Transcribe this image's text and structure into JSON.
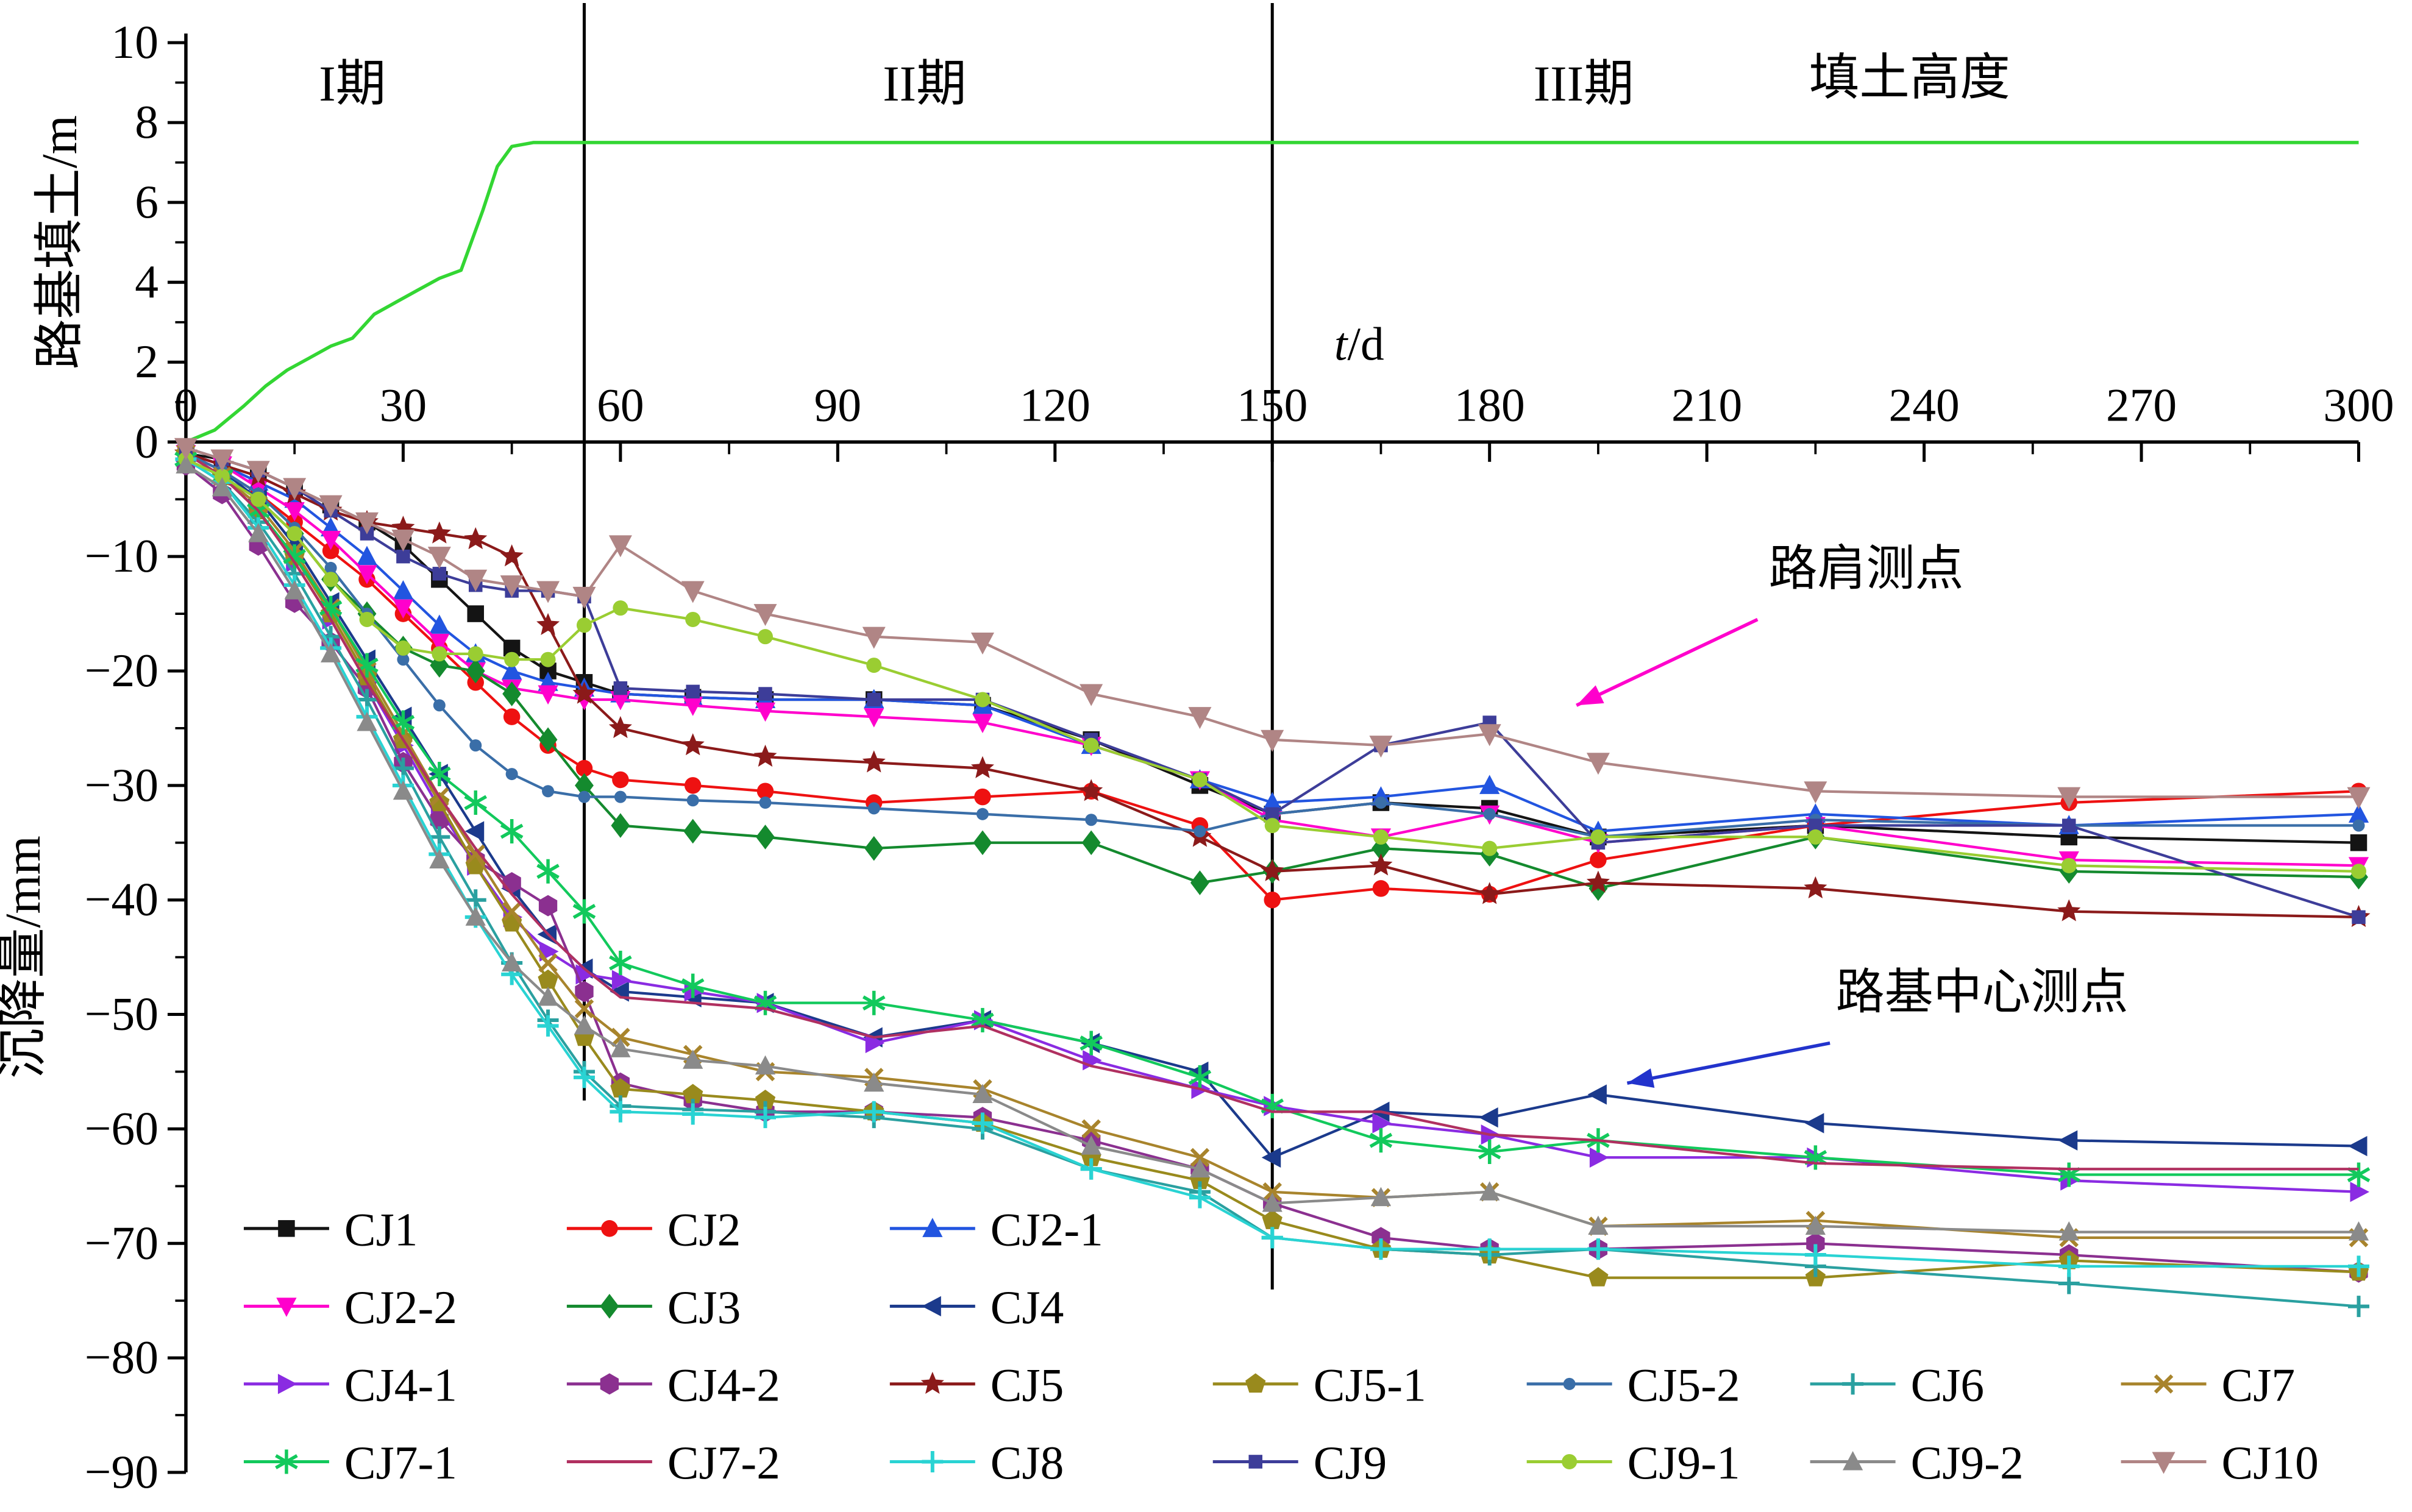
{
  "figure": {
    "background": "#ffffff",
    "axis_color": "#000000",
    "phase_label_color": "#ff0000"
  },
  "chart_data": {
    "type": "line",
    "title": "",
    "xlabel": "t/d",
    "xlim": [
      0,
      300
    ],
    "xticks": [
      0,
      30,
      60,
      90,
      120,
      150,
      180,
      210,
      240,
      270,
      300
    ],
    "phase_dividers_t": [
      55,
      150
    ],
    "phase_labels": [
      {
        "label": "I期",
        "t": 23
      },
      {
        "label": "II期",
        "t": 102
      },
      {
        "label": "III期",
        "t": 193
      }
    ],
    "top_chart": {
      "ylabel": "路基填土/m",
      "ylim": [
        0,
        10
      ],
      "yticks": [
        0,
        2,
        4,
        6,
        8,
        10
      ],
      "series_label": "填土高度",
      "series_color": "#33d633",
      "label_t": 238,
      "label_m": 8.7,
      "x": [
        0,
        4,
        8,
        11,
        14,
        17,
        20,
        23,
        26,
        29,
        32,
        35,
        38,
        41,
        43,
        45,
        48,
        55,
        100,
        150,
        200,
        250,
        300
      ],
      "y": [
        0,
        0.3,
        0.9,
        1.4,
        1.8,
        2.1,
        2.4,
        2.6,
        3.2,
        3.5,
        3.8,
        4.1,
        4.3,
        5.8,
        6.9,
        7.4,
        7.5,
        7.5,
        7.5,
        7.5,
        7.5,
        7.5,
        7.5
      ]
    },
    "bottom_chart": {
      "ylabel": "沉降量/mm",
      "ylim": [
        -90,
        0
      ],
      "yticks": [
        0,
        -10,
        -20,
        -30,
        -40,
        -50,
        -60,
        -70,
        -80,
        -90
      ],
      "x": [
        0,
        5,
        10,
        15,
        20,
        25,
        30,
        35,
        40,
        45,
        50,
        55,
        60,
        70,
        80,
        95,
        110,
        125,
        140,
        150,
        165,
        180,
        195,
        225,
        260,
        300
      ],
      "series": [
        {
          "name": "CJ1",
          "color": "#141414",
          "marker": "square",
          "size": 5.5,
          "group": "shoulder",
          "y": [
            -1,
            -1.5,
            -2.5,
            -4,
            -5.5,
            -7,
            -9,
            -12,
            -15,
            -18,
            -20,
            -21,
            -22,
            -22.3,
            -22.5,
            -22.5,
            -23,
            -26,
            -30,
            -32.5,
            -31.5,
            -32,
            -34.5,
            -33.5,
            -34.5,
            -35
          ]
        },
        {
          "name": "CJ2",
          "color": "#ee1111",
          "marker": "circle",
          "size": 5.5,
          "group": "shoulder",
          "y": [
            -1,
            -2.5,
            -4.5,
            -7,
            -9.5,
            -12,
            -15,
            -18,
            -21,
            -24,
            -26.5,
            -28.5,
            -29.5,
            -30,
            -30.5,
            -31.5,
            -31,
            -30.5,
            -33.5,
            -40,
            -39,
            -39.5,
            -36.5,
            -33.5,
            -31.5,
            -30.5
          ]
        },
        {
          "name": "CJ2-1",
          "color": "#2255e0",
          "marker": "triangle-up",
          "size": 7,
          "group": "shoulder",
          "y": [
            -1,
            -2,
            -3.5,
            -5,
            -7.5,
            -10,
            -13,
            -16,
            -18.5,
            -20,
            -21,
            -21.5,
            -22,
            -22.3,
            -22.5,
            -22.5,
            -23,
            -26.5,
            -29.5,
            -31.5,
            -31,
            -30,
            -34,
            -32.5,
            -33.5,
            -32.5
          ]
        },
        {
          "name": "CJ2-2",
          "color": "#ff00cc",
          "marker": "triangle-down",
          "size": 7,
          "group": "shoulder",
          "y": [
            -1,
            -2,
            -4,
            -6,
            -8.5,
            -11.5,
            -14.5,
            -17.5,
            -20,
            -21.5,
            -22,
            -22.5,
            -22.5,
            -23,
            -23.5,
            -24,
            -24.5,
            -26.5,
            -29.5,
            -33,
            -34.5,
            -32.5,
            -35,
            -33.5,
            -36.5,
            -37
          ]
        },
        {
          "name": "CJ3",
          "color": "#148a2e",
          "marker": "diamond",
          "size": 6.5,
          "group": "shoulder",
          "y": [
            -1.5,
            -3,
            -5,
            -8,
            -12,
            -15,
            -18,
            -19.5,
            -20,
            -22,
            -26,
            -30,
            -33.5,
            -34,
            -34.5,
            -35.5,
            -35,
            -35,
            -38.5,
            -37.5,
            -35.5,
            -36,
            -39,
            -34.5,
            -37.5,
            -38
          ]
        },
        {
          "name": "CJ4",
          "color": "#1b3a8c",
          "marker": "triangle-left",
          "size": 7,
          "group": "center",
          "y": [
            -1,
            -2.5,
            -5,
            -9,
            -14,
            -19,
            -24,
            -29,
            -34,
            -39,
            -43,
            -46,
            -48,
            -48.5,
            -49,
            -52,
            -50.5,
            -52.5,
            -55,
            -62.5,
            -58.5,
            -59,
            -57,
            -59.5,
            -61,
            -61.5
          ]
        },
        {
          "name": "CJ4-1",
          "color": "#8a2be2",
          "marker": "triangle-right",
          "size": 7,
          "group": "center",
          "y": [
            -1,
            -3,
            -6,
            -10.5,
            -15.5,
            -21,
            -26.5,
            -32,
            -37,
            -41.5,
            -44.5,
            -46.5,
            -47,
            -48,
            -49,
            -52.5,
            -50.5,
            -54,
            -56.5,
            -58,
            -59.5,
            -60.5,
            -62.5,
            -62.5,
            -64.5,
            -65.5
          ]
        },
        {
          "name": "CJ4-2",
          "color": "#8b3090",
          "marker": "hexagon",
          "size": 7,
          "group": "center",
          "y": [
            -2,
            -4.5,
            -9,
            -14,
            -17.5,
            -21.5,
            -28,
            -33,
            -36.5,
            -38.5,
            -40.5,
            -48,
            -56,
            -57.5,
            -58.5,
            -58.5,
            -59,
            -61,
            -63.5,
            -66.5,
            -69.5,
            -70.5,
            -70.5,
            -70,
            -71,
            -72.5
          ]
        },
        {
          "name": "CJ5",
          "color": "#8b1a1a",
          "marker": "star",
          "size": 8,
          "group": "shoulder",
          "y": [
            -1,
            -2,
            -3,
            -4.5,
            -6,
            -7,
            -7.5,
            -8,
            -8.5,
            -10,
            -16,
            -22,
            -25,
            -26.5,
            -27.5,
            -28,
            -28.5,
            -30.5,
            -34.5,
            -37.5,
            -37,
            -39.5,
            -38.5,
            -39,
            -41,
            -41.5
          ]
        },
        {
          "name": "CJ5-1",
          "color": "#998a1d",
          "marker": "pentagon",
          "size": 7,
          "group": "center",
          "y": [
            -1,
            -3,
            -6,
            -10,
            -15,
            -20.5,
            -26,
            -31.5,
            -37,
            -42,
            -47,
            -52,
            -56.5,
            -57,
            -57.5,
            -58.5,
            -59.5,
            -62.5,
            -64.5,
            -68,
            -70.5,
            -71,
            -73,
            -73,
            -71.5,
            -72.5
          ]
        },
        {
          "name": "CJ5-2",
          "color": "#3a6ea8",
          "marker": "circle",
          "size": 4,
          "group": "shoulder",
          "y": [
            -1,
            -2.5,
            -4.5,
            -7.5,
            -11,
            -15,
            -19,
            -23,
            -26.5,
            -29,
            -30.5,
            -31,
            -31,
            -31.3,
            -31.5,
            -32,
            -32.5,
            -33,
            -34,
            -32.5,
            -31.5,
            -32.5,
            -34.5,
            -33,
            -33.5,
            -33.5
          ]
        },
        {
          "name": "CJ6",
          "color": "#2aa0a0",
          "marker": "plus",
          "size": 7,
          "group": "center",
          "y": [
            -1.5,
            -3.5,
            -7,
            -11.5,
            -17,
            -22.5,
            -28.5,
            -34.5,
            -40,
            -45.5,
            -50.5,
            -55,
            -58,
            -58.3,
            -58.5,
            -59,
            -60,
            -63.5,
            -65.5,
            -69.5,
            -70.5,
            -71,
            -70.5,
            -72,
            -73.5,
            -75.5
          ]
        },
        {
          "name": "CJ7",
          "color": "#a8842c",
          "marker": "x",
          "size": 7,
          "group": "center",
          "y": [
            -1,
            -3,
            -5.5,
            -9.5,
            -14.5,
            -20,
            -25.5,
            -31,
            -36,
            -41,
            -45.5,
            -49.5,
            -52,
            -53.5,
            -55,
            -55.5,
            -56.5,
            -60,
            -62.5,
            -65.5,
            -66,
            -65.5,
            -68.5,
            -68,
            -69.5,
            -69.5
          ]
        },
        {
          "name": "CJ7-1",
          "color": "#12c95c",
          "marker": "asterisk",
          "size": 8,
          "group": "center",
          "y": [
            -1.5,
            -3,
            -6,
            -10,
            -14.5,
            -19.5,
            -24.5,
            -29,
            -31.5,
            -34,
            -37.5,
            -41,
            -45.5,
            -47.5,
            -49,
            -49,
            -50.5,
            -52.5,
            -55.5,
            -58,
            -61,
            -62,
            -61,
            -62.5,
            -64,
            -64
          ]
        },
        {
          "name": "CJ7-2",
          "color": "#b03060",
          "marker": "none",
          "size": 0,
          "group": "center",
          "y": [
            -1,
            -3,
            -6,
            -10.5,
            -15.5,
            -21,
            -26,
            -31,
            -35.5,
            -39.5,
            -43,
            -46,
            -48.5,
            -49,
            -49.5,
            -52,
            -51,
            -54.5,
            -56.5,
            -58.5,
            -58.5,
            -60.5,
            -61,
            -63,
            -63.5,
            -63.5
          ]
        },
        {
          "name": "CJ8",
          "color": "#29d3d3",
          "marker": "plus",
          "size": 7,
          "group": "center",
          "y": [
            -1.5,
            -3.5,
            -7.5,
            -12.5,
            -18,
            -24,
            -30,
            -36,
            -41.5,
            -46.5,
            -51,
            -55.5,
            -58.5,
            -58.7,
            -59,
            -58.5,
            -59.5,
            -63.5,
            -66,
            -69.5,
            -70.5,
            -70.5,
            -70.5,
            -71,
            -72,
            -72
          ]
        },
        {
          "name": "CJ9",
          "color": "#3d3d99",
          "marker": "square",
          "size": 4.5,
          "group": "shoulder",
          "y": [
            -0.5,
            -1.5,
            -2.5,
            -4,
            -6,
            -8,
            -10,
            -11.5,
            -12.5,
            -13,
            -13,
            -13.5,
            -21.5,
            -21.8,
            -22,
            -22.5,
            -22.5,
            -26,
            -29.5,
            -32.5,
            -26.5,
            -24.5,
            -35,
            -33.5,
            -33.5,
            -41.5
          ]
        },
        {
          "name": "CJ9-1",
          "color": "#9acd32",
          "marker": "circle",
          "size": 5,
          "group": "shoulder",
          "y": [
            -1.5,
            -3,
            -5,
            -8,
            -12,
            -15.5,
            -18,
            -18.5,
            -18.5,
            -19,
            -19,
            -16,
            -14.5,
            -15.5,
            -17,
            -19.5,
            -22.5,
            -26.5,
            -29.5,
            -33.5,
            -34.5,
            -35.5,
            -34.5,
            -34.5,
            -37,
            -37.5
          ]
        },
        {
          "name": "CJ9-2",
          "color": "#8a8a8a",
          "marker": "triangle-up",
          "size": 7,
          "group": "center",
          "y": [
            -2,
            -4,
            -8,
            -13,
            -18.5,
            -24.5,
            -30.5,
            -36.5,
            -41.5,
            -45.5,
            -48.5,
            -51,
            -53,
            -54,
            -54.5,
            -56,
            -57,
            -61.5,
            -63.5,
            -66.5,
            -66,
            -65.5,
            -68.5,
            -68.5,
            -69,
            -69
          ]
        },
        {
          "name": "CJ10",
          "color": "#b08585",
          "marker": "triangle-down",
          "size": 8,
          "group": "shoulder",
          "y": [
            -0.5,
            -1.5,
            -2.5,
            -4,
            -5.5,
            -7,
            -8.5,
            -10,
            -12,
            -12.5,
            -13,
            -13.5,
            -9,
            -13,
            -15,
            -17,
            -17.5,
            -22,
            -24,
            -26,
            -26.5,
            -25.5,
            -28,
            -30.5,
            -31,
            -31
          ]
        }
      ]
    },
    "annotations": [
      {
        "text": "路肩测点",
        "color": "#ff00cc",
        "text_t": 232,
        "text_mm": -12.5,
        "arrow_from_t": 217,
        "arrow_from_mm": -15.5,
        "arrow_to_t": 192,
        "arrow_to_mm": -23
      },
      {
        "text": "路基中心测点",
        "color": "#2233cc",
        "text_t": 248,
        "text_mm": -49.5,
        "arrow_from_t": 227,
        "arrow_from_mm": -52.5,
        "arrow_to_t": 199,
        "arrow_to_mm": -56
      }
    ],
    "legend_rows": [
      [
        "CJ1",
        "CJ2",
        "CJ2-1"
      ],
      [
        "CJ2-2",
        "CJ3",
        "CJ4"
      ],
      [
        "CJ4-1",
        "CJ4-2",
        "CJ5",
        "CJ5-1",
        "CJ5-2",
        "CJ6",
        "CJ7"
      ],
      [
        "CJ7-1",
        "CJ7-2",
        "CJ8",
        "CJ9",
        "CJ9-1",
        "CJ9-2",
        "CJ10"
      ]
    ]
  }
}
